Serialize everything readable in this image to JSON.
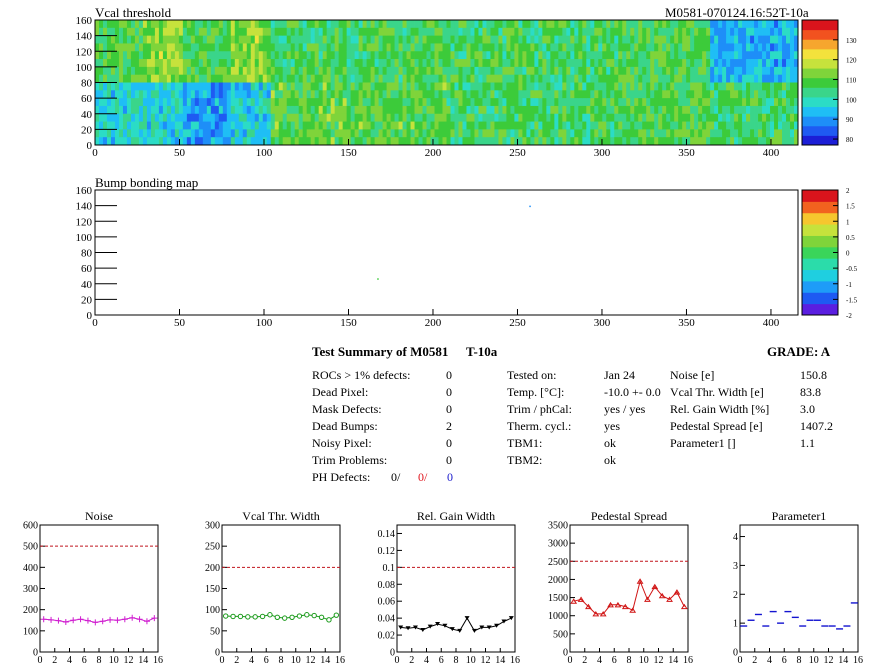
{
  "header": {
    "vcal_title": "Vcal threshold",
    "module_id": "M0581-070124.16:52T-10a",
    "bump_title": "Bump bonding map"
  },
  "maps": {
    "x_ticks": [
      "0",
      "50",
      "100",
      "150",
      "200",
      "250",
      "300",
      "350",
      "400"
    ],
    "y_ticks": [
      "0",
      "20",
      "40",
      "60",
      "80",
      "100",
      "120",
      "140",
      "160"
    ],
    "vcal_palette": [
      "#1c1ed6",
      "#1f5af2",
      "#1e8ef8",
      "#1fbef5",
      "#2bdcc6",
      "#3ad58a",
      "#3ccb3a",
      "#7fd43a",
      "#c6e23c",
      "#f3e23c",
      "#f6a62e",
      "#f2521f",
      "#d9141c"
    ],
    "vcal_scale": [
      "80",
      "90",
      "100",
      "110",
      "120",
      "130"
    ],
    "bump_scale": [
      "-2",
      "-1.5",
      "-1",
      "-0.5",
      "0",
      "0.5",
      "1",
      "1.5",
      "2"
    ],
    "vcal_tiles": [
      {
        "mean": 110,
        "edge": 1
      },
      {
        "mean": 110,
        "edge": 1
      },
      {
        "mean": 108,
        "edge": 0
      },
      {
        "mean": 109,
        "edge": 0
      },
      {
        "mean": 108,
        "edge": 0
      },
      {
        "mean": 108,
        "edge": 0
      },
      {
        "mean": 110,
        "edge": 0
      },
      {
        "mean": 94,
        "edge": 0
      },
      {
        "mean": 99,
        "edge": 0
      },
      {
        "mean": 92,
        "edge": 1
      },
      {
        "mean": 111,
        "edge": 0
      },
      {
        "mean": 111,
        "edge": 0
      },
      {
        "mean": 108,
        "edge": 0
      },
      {
        "mean": 108,
        "edge": 0
      },
      {
        "mean": 110,
        "edge": 0
      },
      {
        "mean": 108,
        "edge": 0
      }
    ]
  },
  "summary": {
    "title": "Test Summary of M0581",
    "temp_tag": "T-10a",
    "grade": "GRADE:  A",
    "left_rows": [
      {
        "label": "ROCs > 1% defects:",
        "value": "0"
      },
      {
        "label": "Dead Pixel:",
        "value": "0"
      },
      {
        "label": "Mask Defects:",
        "value": "0"
      },
      {
        "label": "Dead Bumps:",
        "value": "2"
      },
      {
        "label": "Noisy Pixel:",
        "value": "0"
      },
      {
        "label": "Trim Problems:",
        "value": "0"
      }
    ],
    "ph_label": "PH Defects:",
    "ph_values": [
      "0/",
      "0/",
      "0"
    ],
    "ph_colors": [
      "#000000",
      "#e0141c",
      "#1a1acc"
    ],
    "mid_rows": [
      {
        "label": "Tested on:",
        "value": "Jan 24"
      },
      {
        "label": "Temp. [°C]:",
        "value": "-10.0 +- 0.0"
      },
      {
        "label": "Trim / phCal:",
        "value": "yes / yes"
      },
      {
        "label": "Therm. cycl.:",
        "value": "yes"
      },
      {
        "label": "TBM1:",
        "value": "ok"
      },
      {
        "label": "TBM2:",
        "value": "ok"
      }
    ],
    "right_rows": [
      {
        "label": "Noise [e]",
        "value": "150.8"
      },
      {
        "label": "Vcal Thr. Width [e]",
        "value": "83.8"
      },
      {
        "label": "Rel. Gain Width [%]",
        "value": "3.0"
      },
      {
        "label": "Pedestal Spread [e]",
        "value": "1407.2"
      },
      {
        "label": "Parameter1 []",
        "value": "1.1"
      }
    ]
  },
  "chart_data": [
    {
      "type": "line",
      "title": "Noise",
      "color": "#d01ed0",
      "marker": "plus",
      "x": [
        0,
        1,
        2,
        3,
        4,
        5,
        6,
        7,
        8,
        9,
        10,
        11,
        12,
        13,
        14,
        15
      ],
      "values": [
        155,
        152,
        148,
        142,
        150,
        155,
        148,
        140,
        145,
        152,
        150,
        155,
        162,
        155,
        145,
        160
      ],
      "ylim": [
        0,
        600
      ],
      "yticks": [
        "0",
        "100",
        "200",
        "300",
        "400",
        "500",
        "600"
      ],
      "xticks": [
        "0",
        "2",
        "4",
        "6",
        "8",
        "10",
        "12",
        "14",
        "16"
      ],
      "limit": 500
    },
    {
      "type": "line",
      "title": "Vcal Thr. Width",
      "color": "#1a9a1a",
      "marker": "circle",
      "x": [
        0,
        1,
        2,
        3,
        4,
        5,
        6,
        7,
        8,
        9,
        10,
        11,
        12,
        13,
        14,
        15
      ],
      "values": [
        85,
        84,
        84,
        83,
        83,
        84,
        88,
        82,
        80,
        82,
        85,
        88,
        86,
        82,
        76,
        87
      ],
      "ylim": [
        0,
        300
      ],
      "yticks": [
        "0",
        "50",
        "100",
        "150",
        "200",
        "250",
        "300"
      ],
      "xticks": [
        "0",
        "2",
        "4",
        "6",
        "8",
        "10",
        "12",
        "14",
        "16"
      ],
      "limit": 200
    },
    {
      "type": "line",
      "title": "Rel. Gain Width",
      "color": "#000000",
      "marker": "triangle-down",
      "x": [
        0,
        1,
        2,
        3,
        4,
        5,
        6,
        7,
        8,
        9,
        10,
        11,
        12,
        13,
        14,
        15
      ],
      "values": [
        0.029,
        0.028,
        0.029,
        0.026,
        0.03,
        0.033,
        0.031,
        0.027,
        0.025,
        0.04,
        0.025,
        0.029,
        0.029,
        0.031,
        0.036,
        0.04
      ],
      "ylim": [
        0,
        0.15
      ],
      "yticks": [
        "0",
        "0.02",
        "0.04",
        "0.06",
        "0.08",
        "0.1",
        "0.12",
        "0.14"
      ],
      "xticks": [
        "0",
        "2",
        "4",
        "6",
        "8",
        "10",
        "12",
        "14",
        "16"
      ],
      "limit": 0.1
    },
    {
      "type": "line",
      "title": "Pedestal Spread",
      "color": "#d01414",
      "marker": "triangle-up",
      "x": [
        0,
        1,
        2,
        3,
        4,
        5,
        6,
        7,
        8,
        9,
        10,
        11,
        12,
        13,
        14,
        15
      ],
      "values": [
        1400,
        1450,
        1250,
        1050,
        1050,
        1300,
        1300,
        1250,
        1150,
        1950,
        1450,
        1800,
        1550,
        1450,
        1650,
        1250
      ],
      "ylim": [
        0,
        3500
      ],
      "yticks": [
        "0",
        "500",
        "1000",
        "1500",
        "2000",
        "2500",
        "3000",
        "3500"
      ],
      "xticks": [
        "0",
        "2",
        "4",
        "6",
        "8",
        "10",
        "12",
        "14",
        "16"
      ],
      "limit": 2500
    },
    {
      "type": "scatter",
      "title": "Parameter1",
      "color": "#1414d0",
      "marker": "dash",
      "x": [
        0,
        1,
        2,
        3,
        4,
        5,
        6,
        7,
        8,
        9,
        10,
        11,
        12,
        13,
        14,
        15
      ],
      "values": [
        0.9,
        1.1,
        1.3,
        0.9,
        1.4,
        1.0,
        1.4,
        1.2,
        0.9,
        1.1,
        1.1,
        0.9,
        0.9,
        0.8,
        0.9,
        1.7
      ],
      "ylim": [
        0,
        4.4
      ],
      "yticks": [
        "0",
        "1",
        "2",
        "3",
        "4"
      ],
      "xticks": [
        "0",
        "2",
        "4",
        "6",
        "8",
        "10",
        "12",
        "14",
        "16"
      ],
      "limit": null
    }
  ]
}
